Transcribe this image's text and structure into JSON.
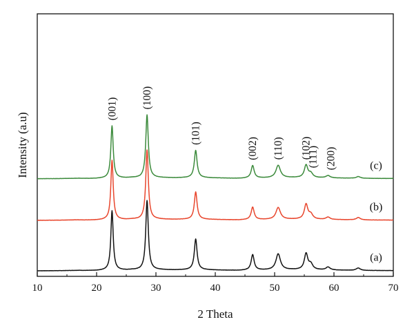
{
  "chart_data": {
    "type": "line",
    "title": "",
    "xlabel": "2 Theta",
    "ylabel": "Intensity (a.u)",
    "xlim": [
      10,
      70
    ],
    "xticks": [
      10,
      20,
      30,
      40,
      50,
      60,
      70
    ],
    "yticks_shown": false,
    "grid": false,
    "legend": "inline-right",
    "colors": {
      "a": "#111111",
      "b": "#e8452c",
      "c": "#3b8a3b",
      "axis": "#111111"
    },
    "baseline": [
      [
        10,
        0.0
      ],
      [
        14,
        0.2
      ],
      [
        17,
        0.7
      ],
      [
        18,
        0.4
      ],
      [
        20,
        0.4
      ],
      [
        21.5,
        0.8
      ],
      [
        25,
        1.0
      ],
      [
        26,
        1.6
      ],
      [
        27.3,
        1.1
      ],
      [
        30.5,
        1.6
      ],
      [
        33,
        1.4
      ],
      [
        35.5,
        1.6
      ],
      [
        38,
        1.6
      ],
      [
        42,
        0.9
      ],
      [
        44,
        0.6
      ],
      [
        46,
        1.1
      ],
      [
        48,
        1.2
      ],
      [
        53,
        1.8
      ],
      [
        58,
        1.4
      ],
      [
        62,
        0.9
      ],
      [
        66,
        0.5
      ],
      [
        70,
        0.4
      ]
    ],
    "peaks": [
      {
        "label": "(001)",
        "pos": 22.6,
        "width": 0.24,
        "label_y": 80
      },
      {
        "label": "(100)",
        "pos": 28.5,
        "width": 0.26,
        "label_y": 89
      },
      {
        "label": "(101)",
        "pos": 36.7,
        "width": 0.28,
        "label_y": 34
      },
      {
        "label": "(002)",
        "pos": 46.3,
        "width": 0.3,
        "label_y": 16
      },
      {
        "label": "(110)",
        "pos": 50.6,
        "width": 0.45,
        "label_y": 17
      },
      {
        "label": "(102)",
        "pos": 55.3,
        "width": 0.35,
        "label_y": 22
      },
      {
        "label": "(111)",
        "pos": 56.1,
        "width": 0.4,
        "label_y": 10
      },
      {
        "label": "(200)",
        "pos": 59.0,
        "width": 0.4,
        "label_y": 5
      }
    ],
    "minor_peaks": [
      {
        "pos": 64.1,
        "width": 0.4
      }
    ],
    "series": [
      {
        "name": "(a)",
        "offset": 0,
        "intensities": [
          100,
          117,
          52,
          26,
          27,
          27,
          9,
          5
        ],
        "minor": [
          4
        ]
      },
      {
        "name": "(b)",
        "offset": 8.5,
        "intensities": [
          100,
          117,
          46,
          21,
          20,
          25,
          8,
          4
        ],
        "minor": [
          4
        ]
      },
      {
        "name": "(c)",
        "offset": 15.5,
        "intensities": [
          88,
          106,
          46,
          21,
          21,
          21,
          7,
          4
        ],
        "minor": [
          3
        ]
      }
    ]
  }
}
